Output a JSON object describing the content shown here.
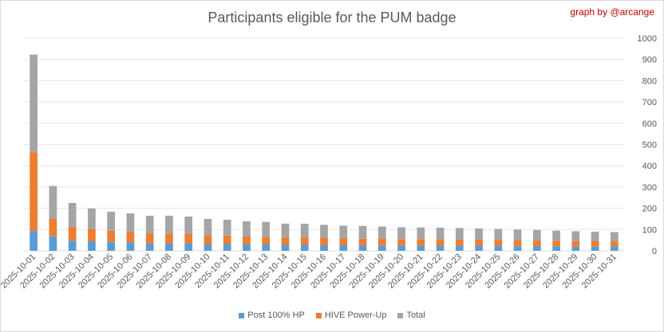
{
  "title": "Participants eligible for the PUM badge",
  "credit": "graph by @arcange",
  "chart_data": {
    "type": "bar",
    "stacked": true,
    "categories": [
      "2025-10-01",
      "2025-10-02",
      "2025-10-03",
      "2025-10-04",
      "2025-10-05",
      "2025-10-06",
      "2025-10-07",
      "2025-10-08",
      "2025-10-09",
      "2025-10-10",
      "2025-10-11",
      "2025-10-12",
      "2025-10-13",
      "2025-10-14",
      "2025-10-15",
      "2025-10-16",
      "2025-10-17",
      "2025-10-18",
      "2025-10-19",
      "2025-10-20",
      "2025-10-21",
      "2025-10-22",
      "2025-10-23",
      "2025-10-24",
      "2025-10-25",
      "2025-10-26",
      "2025-10-27",
      "2025-10-28",
      "2025-10-29",
      "2025-10-30",
      "2025-10-31"
    ],
    "series": [
      {
        "name": "Post 100% HP",
        "color": "#5b9bd5",
        "values": [
          93,
          68,
          48,
          45,
          42,
          40,
          35,
          35,
          35,
          32,
          32,
          30,
          30,
          28,
          28,
          26,
          26,
          26,
          25,
          25,
          25,
          24,
          24,
          24,
          24,
          22,
          22,
          22,
          20,
          20,
          20
        ]
      },
      {
        "name": "HIVE Power-Up",
        "color": "#ed7d31",
        "values": [
          370,
          82,
          64,
          57,
          52,
          48,
          47,
          46,
          45,
          42,
          40,
          38,
          36,
          35,
          35,
          34,
          32,
          31,
          31,
          30,
          30,
          30,
          29,
          29,
          28,
          28,
          27,
          26,
          26,
          25,
          24
        ]
      },
      {
        "name": "Total",
        "color": "#a5a5a5",
        "values": [
          460,
          155,
          113,
          97,
          90,
          88,
          83,
          84,
          81,
          76,
          74,
          71,
          70,
          65,
          64,
          62,
          60,
          60,
          58,
          56,
          55,
          55,
          54,
          52,
          51,
          50,
          49,
          47,
          46,
          45,
          44
        ]
      }
    ],
    "y_axis": {
      "min": 0,
      "max": 1000,
      "step": 100,
      "position": "right"
    },
    "ticks": [
      "0",
      "100",
      "200",
      "300",
      "400",
      "500",
      "600",
      "700",
      "800",
      "900",
      "1000"
    ],
    "grid": true,
    "legend_position": "bottom"
  }
}
